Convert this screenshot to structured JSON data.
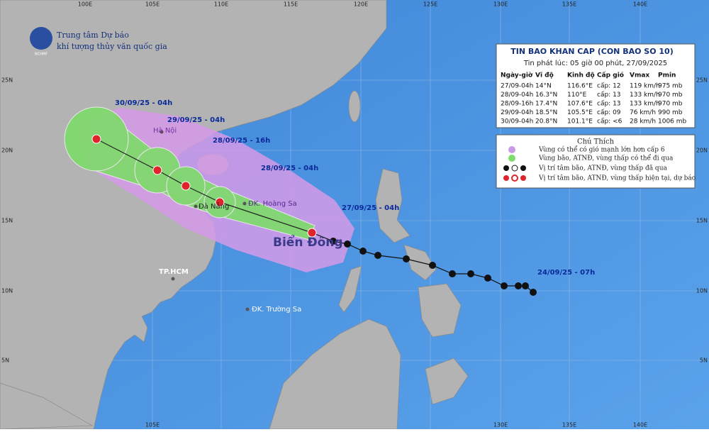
{
  "header": {
    "agency_line1": "Trung tâm Dự báo",
    "agency_line2": "khí tượng thủy văn quốc gia",
    "logo": "NCHMF"
  },
  "bulletin": {
    "title": "TIN BAO KHAN CAP (CON BAO SO 10)",
    "issued": "Tin phát lúc: 05 giờ 00 phút, 27/09/2025",
    "columns": [
      "Ngày-giờ",
      "Vĩ độ",
      "Kinh độ",
      "Cấp gió",
      "Vmax",
      "Pmin"
    ],
    "rows": [
      [
        "27/09-04h",
        "14°N",
        "116.6°E",
        "cấp: 12",
        "119 km/h",
        "975 mb"
      ],
      [
        "28/09-04h",
        "16.3°N",
        "110°E",
        "cấp: 13",
        "133 km/h",
        "970 mb"
      ],
      [
        "28/09-16h",
        "17.4°N",
        "107.6°E",
        "cấp: 13",
        "133 km/h",
        "970 mb"
      ],
      [
        "29/09-04h",
        "18.5°N",
        "105.5°E",
        "cấp: 09",
        "76 km/h",
        "990 mb"
      ],
      [
        "30/09-04h",
        "20.8°N",
        "101.1°E",
        "cấp: <6",
        "28 km/h",
        "1006 mb"
      ]
    ]
  },
  "legend": {
    "title": "Chú Thích",
    "items": [
      "Vùng có thể có gió mạnh lớn hơn cấp 6",
      "Vùng bão, ATNĐ, vùng thấp có thể đi qua",
      "Vị trí tâm bão, ATNĐ, vùng thấp đã qua",
      "Vị trí tâm bão, ATNĐ, vùng thấp hiện tại, dự báo"
    ]
  },
  "track_labels": [
    "30/09/25 - 04h",
    "29/09/25 - 04h",
    "28/09/25 - 16h",
    "28/09/25 - 04h",
    "27/09/25 - 04h",
    "24/09/25 - 07h"
  ],
  "places": [
    "Hà Nội",
    "Đà Nẵng",
    "ĐK. Hoàng Sa",
    "Biển Đông",
    "TP.HCM",
    "ĐK. Trường Sa"
  ],
  "axes": {
    "lon_top": [
      "100E",
      "105E",
      "110E",
      "115E",
      "120E",
      "125E",
      "130E",
      "135E",
      "140E"
    ],
    "lon_bottom": [
      "105E",
      "130E",
      "135E",
      "140E"
    ],
    "lat_left": [
      "25N",
      "20N",
      "15N",
      "10N",
      "5N"
    ],
    "lat_right": [
      "25N",
      "20N",
      "15N",
      "10N",
      "5N"
    ]
  }
}
